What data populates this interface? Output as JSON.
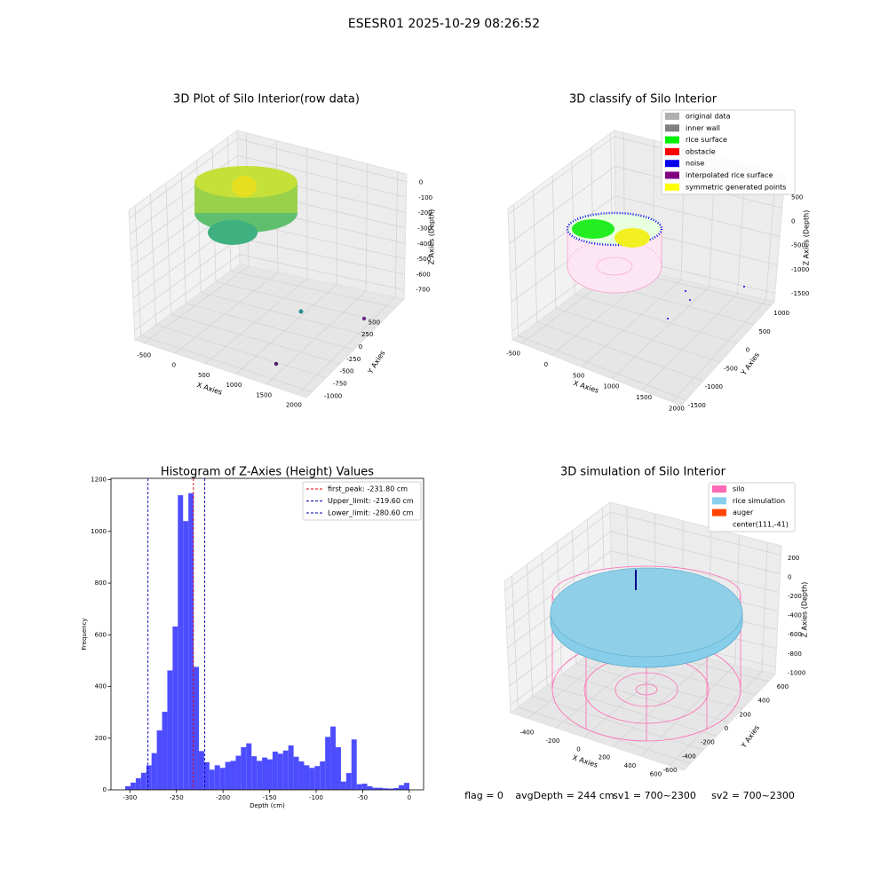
{
  "suptitle": "ESESR01 2025-10-29 08:26:52",
  "status": [
    "flag = 0",
    "avgDepth = 244 cm",
    "sv1 = 700~2300",
    "sv2 = 700~2300"
  ],
  "chart_data": [
    {
      "type": "scatter3d",
      "title": "3D Plot of Silo Interior(row data)",
      "xlabel": "X Axies",
      "ylabel": "Y Axies",
      "zlabel": "Z Axies (Depth)",
      "xlim": [
        -650,
        2150
      ],
      "xticks": [
        -500,
        0,
        500,
        1000,
        1500,
        2000
      ],
      "ylim": [
        -1100,
        650
      ],
      "yticks": [
        -1000,
        -750,
        -500,
        -250,
        0,
        250,
        500
      ],
      "zlim": [
        -760,
        50
      ],
      "zticks": [
        -700,
        -600,
        -500,
        -400,
        -300,
        -200,
        -100,
        0
      ]
    },
    {
      "type": "scatter3d",
      "title": "3D classify of Silo Interior",
      "xlabel": "X Axies",
      "ylabel": "Y Axies",
      "zlabel": "Z Axies (Depth)",
      "xlim": [
        -650,
        2150
      ],
      "xticks": [
        -500,
        0,
        500,
        1000,
        1500,
        2000
      ],
      "ylim": [
        -1650,
        1100
      ],
      "yticks": [
        -1500,
        -1000,
        -500,
        0,
        500,
        1000
      ],
      "zlim": [
        -1650,
        600
      ],
      "zticks": [
        -1500,
        -1000,
        -500,
        0,
        500
      ],
      "legend": [
        {
          "name": "original data",
          "color": "#b0b0b0"
        },
        {
          "name": "inner wall",
          "color": "#808080"
        },
        {
          "name": "rice surface",
          "color": "#00ee00"
        },
        {
          "name": "obstacle",
          "color": "#ff0000"
        },
        {
          "name": "noise",
          "color": "#0000ee"
        },
        {
          "name": "interpolated rice surface",
          "color": "#800080"
        },
        {
          "name": "symmetric generated points",
          "color": "#ffff00"
        }
      ]
    },
    {
      "type": "histogram",
      "title": "Histogram of Z-Axies (Height) Values",
      "xlabel": "Depth (cm)",
      "ylabel": "Frequency",
      "color": "#4d4dff",
      "bins": [
        -305,
        -299.35,
        -293.7,
        -288.05,
        -282.4,
        -276.75,
        -271.1,
        -265.45,
        -259.8,
        -254.15,
        -248.5,
        -242.85,
        -237.2,
        -231.55,
        -225.9,
        -220.25,
        -214.6,
        -208.95,
        -203.3,
        -197.65,
        -192,
        -186.35,
        -180.7,
        -175.05,
        -169.4,
        -163.75,
        -158.1,
        -152.45,
        -146.8,
        -141.15,
        -135.5,
        -129.85,
        -124.2,
        -118.55,
        -112.9,
        -107.25,
        -101.6,
        -95.95,
        -90.3,
        -84.65,
        -79,
        -73.35,
        -67.7,
        -62.05,
        -56.4,
        -50.75,
        -45.1,
        -39.45,
        -33.8,
        -28.15,
        -22.5,
        -16.85,
        -11.2,
        -5.55,
        0.1
      ],
      "values": [
        14,
        28,
        45,
        66,
        95,
        142,
        230,
        302,
        462,
        632,
        1140,
        1040,
        1148,
        476,
        150,
        107,
        78,
        95,
        85,
        108,
        112,
        132,
        165,
        180,
        130,
        112,
        125,
        118,
        148,
        140,
        152,
        172,
        128,
        110,
        95,
        85,
        92,
        110,
        205,
        245,
        165,
        32,
        65,
        195,
        22,
        24,
        14,
        8,
        8,
        6,
        5,
        7,
        18,
        27
      ],
      "xlim": [
        -320.3,
        15.4
      ],
      "xticks": [
        -300,
        -250,
        -200,
        -150,
        -100,
        -50,
        0
      ],
      "ylim": [
        0,
        1205.4
      ],
      "yticks": [
        0,
        200,
        400,
        600,
        800,
        1000,
        1200
      ],
      "vlines": [
        {
          "label": "first_peak: -231.80 cm",
          "value": -231.8,
          "color": "#dd0000"
        },
        {
          "label": "Upper_limit: -219.60 cm",
          "value": -219.6,
          "color": "#0000aa"
        },
        {
          "label": "Lower_limit: -280.60 cm",
          "value": -280.6,
          "color": "#0000aa"
        }
      ]
    },
    {
      "type": "scatter3d",
      "title": "3D simulation of Silo Interior",
      "xlabel": "X Axies",
      "ylabel": "Y Axies",
      "zlabel": "Z Axies (Depth)",
      "xlim": [
        -520,
        700
      ],
      "xticks": [
        -400,
        -200,
        0,
        200,
        400,
        600
      ],
      "ylim": [
        -700,
        700
      ],
      "yticks": [
        -600,
        -400,
        -200,
        0,
        200,
        400,
        600
      ],
      "zlim": [
        -1080,
        300
      ],
      "zticks": [
        -1000,
        -800,
        -600,
        -400,
        -200,
        0,
        200
      ],
      "legend": [
        {
          "name": "silo",
          "color": "#ff69b4"
        },
        {
          "name": "rice simulation",
          "color": "#87ceeb"
        },
        {
          "name": "auger",
          "color": "#ff4500"
        },
        {
          "name": "center(111,-41)"
        }
      ]
    }
  ]
}
